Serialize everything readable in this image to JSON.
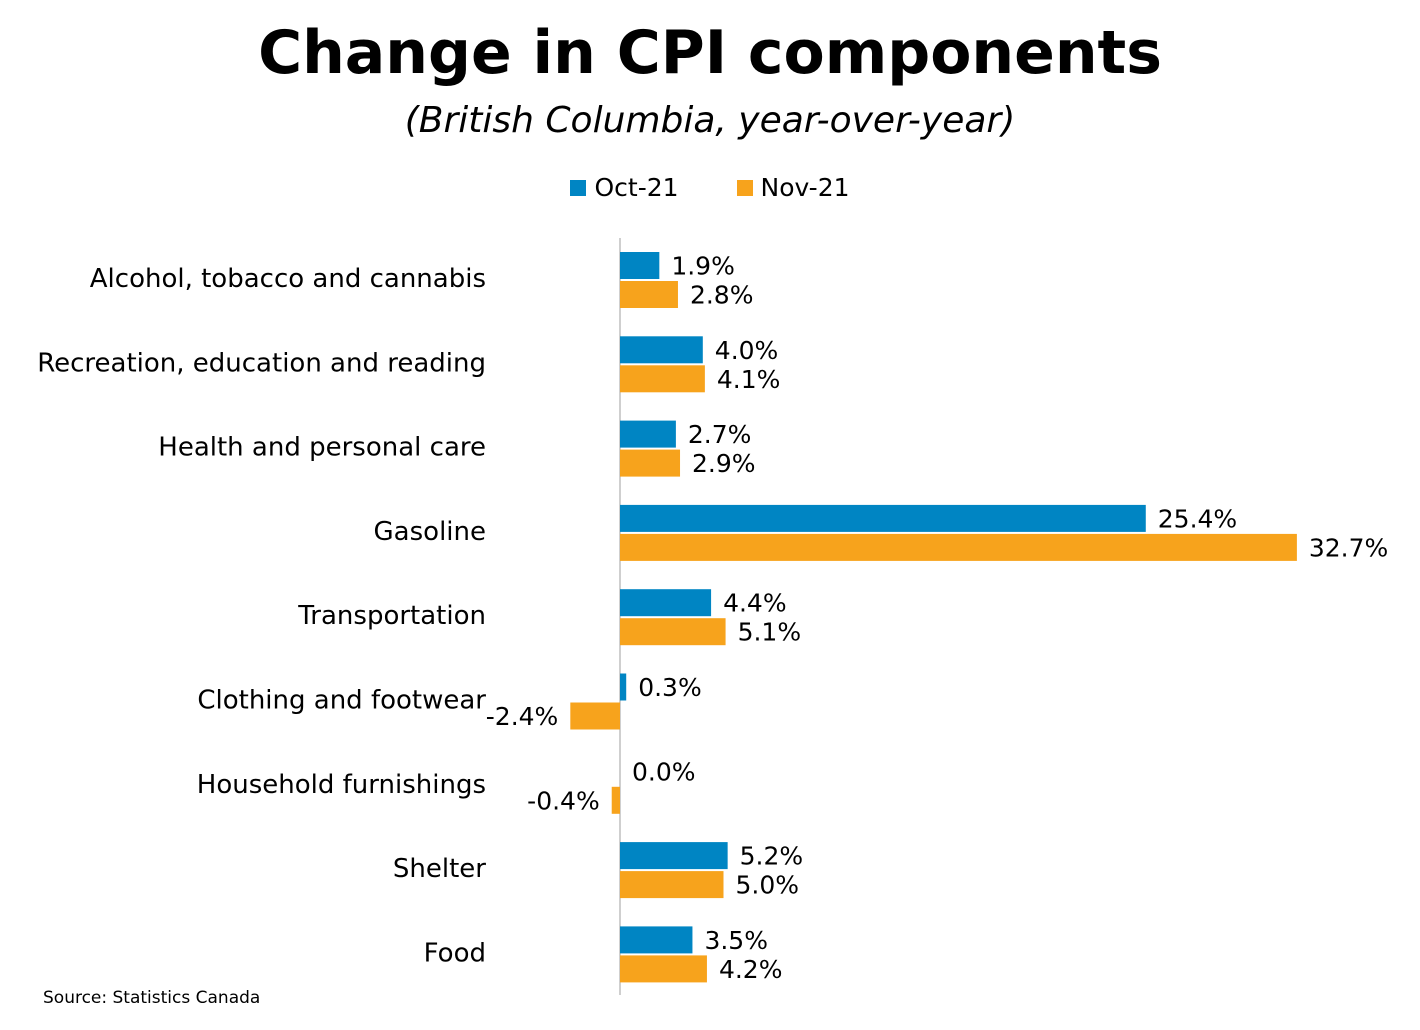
{
  "colors": {
    "oct": "#0085c3",
    "nov": "#f7a31c",
    "axis": "#bfbfbf"
  },
  "chart_data": {
    "type": "bar",
    "orientation": "horizontal",
    "title": "Change in CPI components",
    "subtitle": "(British Columbia, year-over-year)",
    "categories": [
      "Alcohol, tobacco and cannabis",
      "Recreation, education and reading",
      "Health and personal care",
      "Gasoline",
      "Transportation",
      "Clothing and footwear",
      "Household furnishings",
      "Shelter",
      "Food"
    ],
    "series": [
      {
        "name": "Oct-21",
        "values": [
          1.9,
          4.0,
          2.7,
          25.4,
          4.4,
          0.3,
          0.0,
          5.2,
          3.5
        ],
        "labels": [
          "1.9%",
          "4.0%",
          "2.7%",
          "25.4%",
          "4.4%",
          "0.3%",
          "0.0%",
          "5.2%",
          "3.5%"
        ]
      },
      {
        "name": "Nov-21",
        "values": [
          2.8,
          4.1,
          2.9,
          32.7,
          5.1,
          -2.4,
          -0.4,
          5.0,
          4.2
        ],
        "labels": [
          "2.8%",
          "4.1%",
          "2.9%",
          "32.7%",
          "5.1%",
          "-2.4%",
          "-0.4%",
          "5.0%",
          "4.2%"
        ]
      }
    ],
    "legend": "top-center",
    "grid": false
  },
  "source": "Source: Statistics Canada"
}
